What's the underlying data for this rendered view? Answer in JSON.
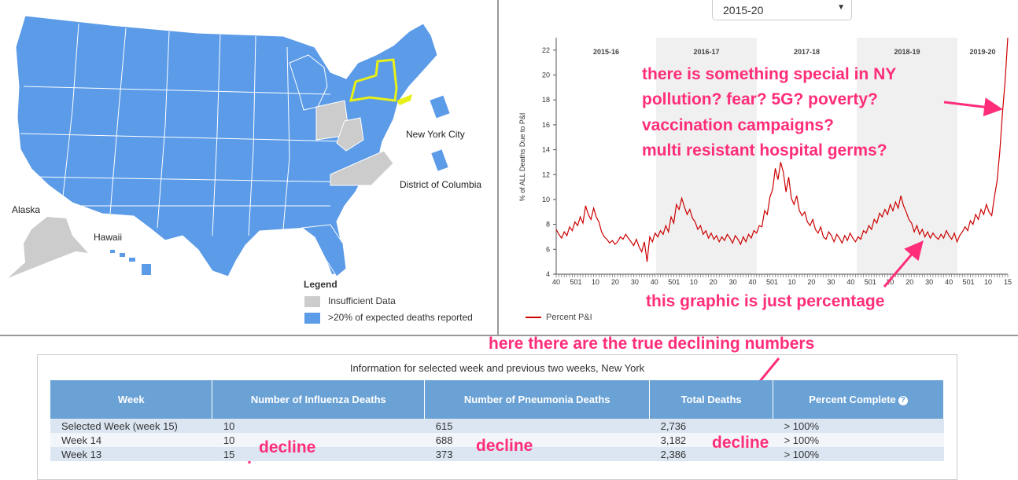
{
  "map": {
    "labels": {
      "nyc": "New York City",
      "dc": "District of Columbia",
      "alaska": "Alaska",
      "hawaii": "Hawaii"
    },
    "legend": {
      "title": "Legend",
      "insufficient": "Insufficient Data",
      "reported": ">20% of expected deaths reported"
    },
    "colors": {
      "reported": "#5b9be8",
      "insufficient": "#cccccc",
      "selected": "#e8f018"
    }
  },
  "controls": {
    "season": "2015-20"
  },
  "chart_data": {
    "type": "line",
    "ylabel": "% of ALL Deaths Due to P&I",
    "ylim": [
      4,
      23
    ],
    "yticks": [
      4,
      6,
      8,
      10,
      12,
      14,
      16,
      18,
      20,
      22
    ],
    "season_labels": [
      "2015-16",
      "2016-17",
      "2017-18",
      "2018-19",
      "2019-20"
    ],
    "x_tick_labels": [
      "40",
      "501",
      "10",
      "20",
      "30",
      "40",
      "501",
      "10",
      "20",
      "30",
      "40",
      "501",
      "10",
      "20",
      "30",
      "40",
      "501",
      "10",
      "20",
      "30",
      "40",
      "501",
      "10",
      "15"
    ],
    "series": [
      {
        "name": "Percent P&I",
        "color": "#cc0000",
        "values": [
          7.6,
          7.2,
          6.9,
          7.4,
          7.1,
          7.8,
          7.5,
          8.2,
          7.9,
          8.6,
          8.1,
          9.5,
          8.8,
          8.4,
          9.3,
          8.6,
          8.2,
          7.4,
          7.0,
          6.8,
          6.5,
          6.7,
          6.4,
          6.6,
          7.0,
          6.8,
          7.2,
          6.9,
          6.6,
          6.3,
          6.8,
          6.2,
          5.8,
          6.6,
          5.0,
          7.0,
          6.6,
          7.3,
          7.0,
          7.5,
          7.2,
          7.9,
          7.4,
          8.6,
          8.1,
          9.6,
          9.2,
          10.1,
          9.4,
          8.8,
          9.2,
          8.5,
          8.2,
          7.6,
          7.9,
          7.2,
          7.5,
          6.9,
          7.3,
          6.8,
          7.1,
          6.6,
          7.0,
          6.7,
          7.2,
          6.9,
          6.5,
          7.1,
          6.8,
          6.4,
          7.0,
          6.6,
          7.2,
          6.9,
          7.5,
          7.3,
          7.9,
          7.8,
          9.1,
          8.8,
          10.2,
          10.8,
          12.5,
          11.6,
          13.0,
          12.2,
          10.6,
          11.8,
          10.1,
          9.6,
          10.3,
          9.1,
          8.7,
          9.0,
          8.2,
          7.9,
          8.4,
          7.6,
          7.3,
          7.8,
          7.0,
          6.8,
          7.4,
          7.1,
          6.6,
          7.2,
          6.9,
          6.5,
          7.1,
          6.7,
          7.3,
          6.9,
          6.6,
          7.0,
          6.8,
          7.5,
          7.3,
          7.9,
          7.6,
          8.4,
          8.1,
          8.9,
          8.6,
          9.2,
          8.8,
          9.6,
          9.1,
          9.8,
          9.3,
          10.3,
          9.5,
          9.0,
          8.4,
          8.1,
          7.4,
          7.9,
          7.2,
          7.6,
          7.0,
          7.4,
          6.9,
          7.3,
          7.0,
          6.8,
          7.2,
          6.9,
          7.5,
          7.1,
          6.8,
          7.3,
          6.6,
          7.1,
          7.4,
          7.8,
          7.5,
          8.3,
          8.0,
          8.8,
          8.4,
          9.2,
          8.8,
          9.6,
          9.0,
          8.7,
          10.2,
          11.5,
          13.8,
          16.9,
          19.5,
          23.0
        ]
      }
    ]
  },
  "notes": {
    "n1": "there is something special in NY",
    "n2": "pollution? fear? 5G? poverty?",
    "n3": "vaccination campaigns?",
    "n4": "multi resistant hospital germs?",
    "n5": "this graphic is just percentage",
    "n6": "here there are the true declining numbers",
    "decline": "decline"
  },
  "table": {
    "caption": "Information for selected week and previous two weeks, New York",
    "headers": [
      "Week",
      "Number of Influenza Deaths",
      "Number of Pneumonia Deaths",
      "Total Deaths",
      "Percent Complete"
    ],
    "help_glyph": "?",
    "rows": [
      [
        "Selected Week (week 15)",
        "10",
        "615",
        "2,736",
        "> 100%"
      ],
      [
        "Week 14",
        "10",
        "688",
        "3,182",
        "> 100%"
      ],
      [
        "Week 13",
        "15",
        "373",
        "2,386",
        "> 100%"
      ]
    ]
  }
}
